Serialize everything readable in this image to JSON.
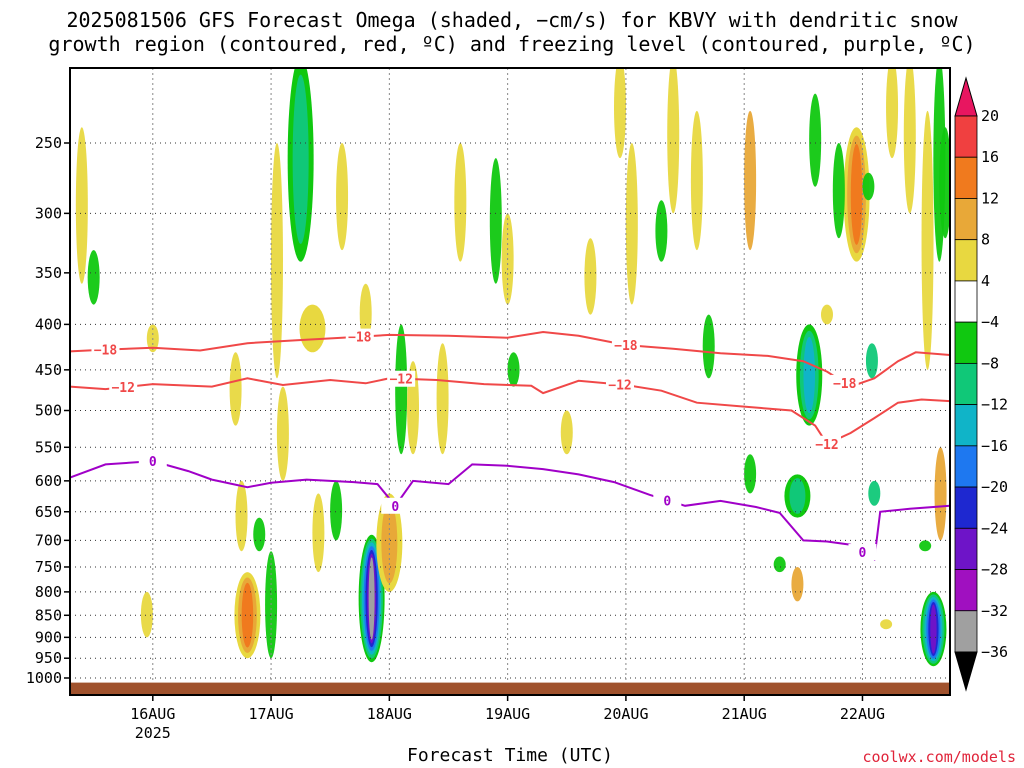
{
  "title_line1": "2025081506 GFS Forecast Omega (shaded, −cm/s) for KBVY with dendritic snow",
  "title_line2": "growth region (contoured, red, ºC) and freezing level (contoured, purple, ºC)",
  "xlabel": "Forecast Time (UTC)",
  "credit": "coolwx.com/models",
  "chart_data": {
    "type": "heatmap",
    "title": "2025081506 GFS Forecast Omega (shaded, −cm/s) for KBVY with dendritic snow growth region (contoured, red, ºC) and freezing level (contoured, purple, ºC)",
    "xlabel": "Forecast Time (UTC)",
    "ylabel": "",
    "x_range_days": [
      15.3,
      22.74
    ],
    "y_axis": "pressure (log, inverted)",
    "y_range": [
      1020,
      200
    ],
    "x_ticks": [
      {
        "label": "16AUG",
        "sub": "2025",
        "day": 16
      },
      {
        "label": "17AUG",
        "sub": "",
        "day": 17
      },
      {
        "label": "18AUG",
        "sub": "",
        "day": 18
      },
      {
        "label": "19AUG",
        "sub": "",
        "day": 19
      },
      {
        "label": "20AUG",
        "sub": "",
        "day": 20
      },
      {
        "label": "21AUG",
        "sub": "",
        "day": 21
      },
      {
        "label": "22AUG",
        "sub": "",
        "day": 22
      }
    ],
    "y_ticks": [
      250,
      300,
      350,
      400,
      450,
      500,
      550,
      600,
      650,
      700,
      750,
      800,
      850,
      900,
      950,
      1000
    ],
    "colorbar": {
      "labels": [
        "20",
        "16",
        "12",
        "8",
        "4",
        "−4",
        "−8",
        "−12",
        "−16",
        "−20",
        "−24",
        "−28",
        "−32",
        "−36"
      ],
      "colors": [
        "#e81660",
        "#f04040",
        "#f07a1e",
        "#e8a838",
        "#e8d840",
        "#ffffff",
        "#10c810",
        "#10c878",
        "#10b4c8",
        "#1e78f0",
        "#1e28d0",
        "#6e14c8",
        "#a010c0",
        "#a0a0a0",
        "#000000"
      ]
    },
    "contours": [
      {
        "kind": "dgz",
        "level": -18,
        "label": "−18",
        "color": "#f04848",
        "points": [
          [
            15.3,
            429
          ],
          [
            15.6,
            427
          ],
          [
            16.0,
            425
          ],
          [
            16.4,
            428
          ],
          [
            16.8,
            420
          ],
          [
            17.2,
            417
          ],
          [
            17.6,
            414
          ],
          [
            18.0,
            411
          ],
          [
            18.5,
            412
          ],
          [
            19.0,
            414
          ],
          [
            19.3,
            408
          ],
          [
            19.6,
            412
          ],
          [
            20.0,
            422
          ],
          [
            20.4,
            426
          ],
          [
            20.8,
            431
          ],
          [
            21.2,
            434
          ],
          [
            21.5,
            440
          ],
          [
            21.7,
            452
          ],
          [
            21.9,
            470
          ],
          [
            22.1,
            460
          ],
          [
            22.3,
            440
          ],
          [
            22.45,
            430
          ],
          [
            22.74,
            433
          ]
        ],
        "labels_at": [
          15.6,
          17.75,
          20.0,
          21.85
        ]
      },
      {
        "kind": "dgz",
        "level": -12,
        "label": "−12",
        "color": "#f04848",
        "points": [
          [
            15.3,
            470
          ],
          [
            15.6,
            473
          ],
          [
            16.0,
            467
          ],
          [
            16.5,
            470
          ],
          [
            16.8,
            460
          ],
          [
            17.1,
            468
          ],
          [
            17.5,
            462
          ],
          [
            17.8,
            466
          ],
          [
            18.0,
            460
          ],
          [
            18.4,
            462
          ],
          [
            18.8,
            467
          ],
          [
            19.2,
            469
          ],
          [
            19.3,
            478
          ],
          [
            19.6,
            463
          ],
          [
            20.0,
            468
          ],
          [
            20.3,
            475
          ],
          [
            20.6,
            490
          ],
          [
            21.0,
            495
          ],
          [
            21.4,
            500
          ],
          [
            21.6,
            520
          ],
          [
            21.7,
            545
          ],
          [
            21.9,
            530
          ],
          [
            22.1,
            510
          ],
          [
            22.3,
            490
          ],
          [
            22.5,
            486
          ],
          [
            22.74,
            488
          ]
        ],
        "labels_at": [
          15.75,
          18.1,
          19.95,
          21.7
        ]
      },
      {
        "kind": "freezing",
        "level": 0,
        "label": "0",
        "color": "#a000c8",
        "points": [
          [
            15.3,
            595
          ],
          [
            15.6,
            575
          ],
          [
            16.0,
            570
          ],
          [
            16.3,
            585
          ],
          [
            16.5,
            598
          ],
          [
            16.8,
            610
          ],
          [
            17.0,
            603
          ],
          [
            17.3,
            598
          ],
          [
            17.7,
            602
          ],
          [
            17.9,
            605
          ],
          [
            18.05,
            640
          ],
          [
            18.2,
            600
          ],
          [
            18.5,
            605
          ],
          [
            18.7,
            575
          ],
          [
            19.0,
            577
          ],
          [
            19.3,
            582
          ],
          [
            19.6,
            590
          ],
          [
            19.9,
            602
          ],
          [
            20.2,
            622
          ],
          [
            20.5,
            640
          ],
          [
            20.8,
            632
          ],
          [
            21.1,
            642
          ],
          [
            21.3,
            652
          ],
          [
            21.5,
            700
          ],
          [
            21.7,
            702
          ],
          [
            21.9,
            708
          ],
          [
            22.1,
            735
          ],
          [
            22.15,
            650
          ],
          [
            22.4,
            645
          ],
          [
            22.74,
            640
          ]
        ],
        "labels_at": [
          16.0,
          18.05,
          20.35,
          22.0
        ]
      }
    ],
    "omega_blobs": [
      {
        "day": 17.25,
        "p_top": 200,
        "p_bot": 340,
        "value": -12
      },
      {
        "day": 17.35,
        "p_top": 380,
        "p_bot": 430,
        "value": 4
      },
      {
        "day": 17.85,
        "p_top": 690,
        "p_bot": 960,
        "value": -36
      },
      {
        "day": 18.0,
        "p_top": 620,
        "p_bot": 800,
        "value": 8
      },
      {
        "day": 16.8,
        "p_top": 760,
        "p_bot": 950,
        "value": 12
      },
      {
        "day": 21.55,
        "p_top": 400,
        "p_bot": 520,
        "value": -16
      },
      {
        "day": 21.45,
        "p_top": 590,
        "p_bot": 660,
        "value": -12
      },
      {
        "day": 22.6,
        "p_top": 800,
        "p_bot": 970,
        "value": -28
      },
      {
        "day": 21.95,
        "p_top": 240,
        "p_bot": 340,
        "value": 12
      }
    ]
  }
}
